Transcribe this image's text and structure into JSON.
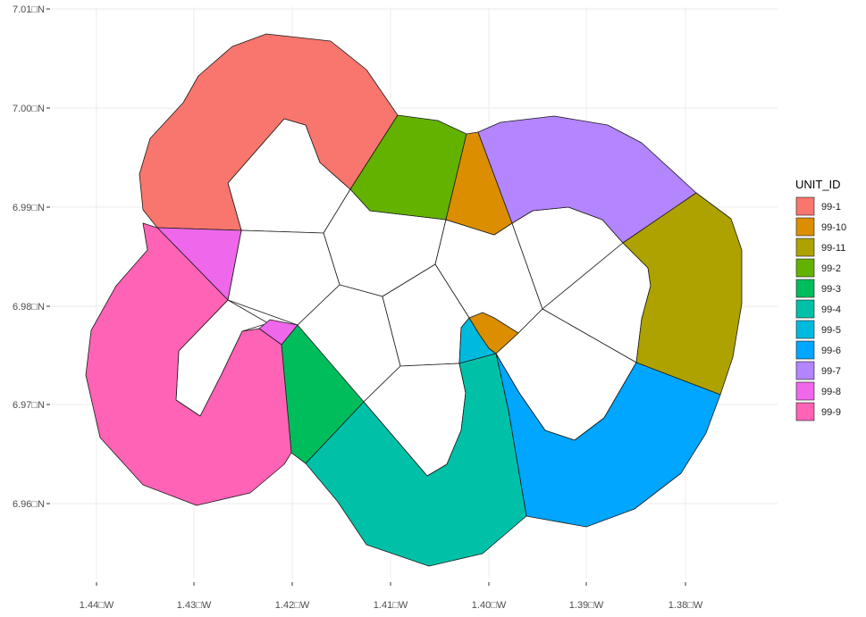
{
  "map": {
    "x_ticks": [
      "1.44□W",
      "1.43□W",
      "1.42□W",
      "1.41□W",
      "1.40□W",
      "1.39□W",
      "1.38□W"
    ],
    "y_ticks": [
      "7.01□N",
      "7.00□N",
      "6.99□N",
      "6.98□N",
      "6.97□N",
      "6.96□N"
    ],
    "grid": true,
    "legend_position": "right"
  },
  "legend": {
    "title": "UNIT_ID",
    "items": [
      {
        "label": "99-1",
        "color": "#F8766D"
      },
      {
        "label": "99-10",
        "color": "#DB8E00"
      },
      {
        "label": "99-11",
        "color": "#AEA200"
      },
      {
        "label": "99-2",
        "color": "#64B200"
      },
      {
        "label": "99-3",
        "color": "#00BD5C"
      },
      {
        "label": "99-4",
        "color": "#00C1A7"
      },
      {
        "label": "99-5",
        "color": "#00BADE"
      },
      {
        "label": "99-6",
        "color": "#00A6FF"
      },
      {
        "label": "99-7",
        "color": "#B385FF"
      },
      {
        "label": "99-8",
        "color": "#EF67EB"
      },
      {
        "label": "99-9",
        "color": "#FF63B6"
      }
    ]
  }
}
